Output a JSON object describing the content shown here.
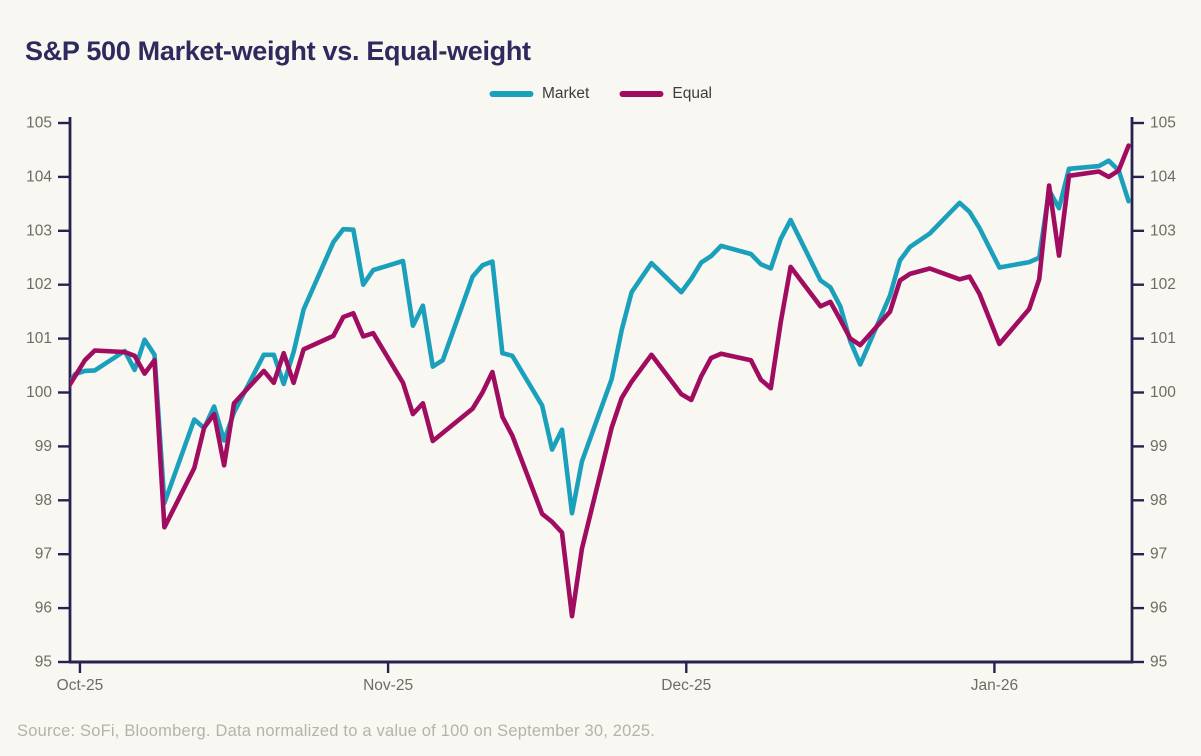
{
  "title": "S&P 500 Market-weight vs. Equal-weight",
  "source_note": "Source: SoFi, Bloomberg. Data normalized to a value of 100 on September 30, 2025.",
  "colors": {
    "background": "#F9F7F2",
    "title": "#2E2A5E",
    "axis": "#262250",
    "tick_label": "#6F6B64",
    "market": "#1BA0BC",
    "equal": "#A00D60",
    "legend_text": "#3C3C3C",
    "source_text": "#B6B2A9"
  },
  "legend": {
    "market_label": "Market",
    "equal_label": "Equal"
  },
  "chart_data": {
    "type": "line",
    "title": "S&P 500 Market-weight vs. Equal-weight",
    "xlabel": "",
    "ylabel": "",
    "x_unit": "calendar days since Sep 30, 2025 (trading days plotted)",
    "x_domain": [
      0,
      107.5
    ],
    "x_ticks": [
      {
        "d": 1,
        "label": "Oct-25"
      },
      {
        "d": 32,
        "label": "Nov-25"
      },
      {
        "d": 62,
        "label": "Dec-25"
      },
      {
        "d": 93,
        "label": "Jan-26"
      }
    ],
    "y_axis": {
      "min": 95,
      "max": 105,
      "tick_step": 1,
      "labels_on_both_sides": true
    },
    "grid": false,
    "legend_position": "top-center",
    "normalization": "100 = Sep 30, 2025 close",
    "series": [
      {
        "name": "Market",
        "color": "#1BA0BC",
        "points": [
          [
            0,
            100.0
          ],
          [
            1,
            100.34
          ],
          [
            2,
            100.4
          ],
          [
            3,
            100.41
          ],
          [
            6,
            100.77
          ],
          [
            7,
            100.42
          ],
          [
            8,
            100.98
          ],
          [
            9,
            100.7
          ],
          [
            10,
            97.95
          ],
          [
            13,
            99.5
          ],
          [
            14,
            99.34
          ],
          [
            15,
            99.74
          ],
          [
            16,
            99.11
          ],
          [
            17,
            99.63
          ],
          [
            20,
            100.7
          ],
          [
            21,
            100.7
          ],
          [
            22,
            100.16
          ],
          [
            23,
            100.75
          ],
          [
            24,
            101.54
          ],
          [
            27,
            102.79
          ],
          [
            28,
            103.03
          ],
          [
            29,
            103.02
          ],
          [
            30,
            102.0
          ],
          [
            31,
            102.27
          ],
          [
            34,
            102.44
          ],
          [
            35,
            101.24
          ],
          [
            36,
            101.61
          ],
          [
            37,
            100.48
          ],
          [
            38,
            100.6
          ],
          [
            41,
            102.15
          ],
          [
            42,
            102.36
          ],
          [
            43,
            102.43
          ],
          [
            44,
            100.73
          ],
          [
            45,
            100.68
          ],
          [
            48,
            99.76
          ],
          [
            49,
            98.94
          ],
          [
            50,
            99.31
          ],
          [
            51,
            97.76
          ],
          [
            52,
            98.72
          ],
          [
            55,
            100.25
          ],
          [
            56,
            101.16
          ],
          [
            57,
            101.86
          ],
          [
            59,
            102.4
          ],
          [
            62,
            101.86
          ],
          [
            63,
            102.11
          ],
          [
            64,
            102.41
          ],
          [
            65,
            102.53
          ],
          [
            66,
            102.72
          ],
          [
            69,
            102.57
          ],
          [
            70,
            102.38
          ],
          [
            71,
            102.3
          ],
          [
            72,
            102.85
          ],
          [
            73,
            103.2
          ],
          [
            76,
            102.08
          ],
          [
            77,
            101.95
          ],
          [
            78,
            101.6
          ],
          [
            79,
            100.95
          ],
          [
            80,
            100.52
          ],
          [
            83,
            101.8
          ],
          [
            84,
            102.45
          ],
          [
            85,
            102.7
          ],
          [
            87,
            102.95
          ],
          [
            90,
            103.52
          ],
          [
            91,
            103.35
          ],
          [
            92,
            103.05
          ],
          [
            94,
            102.32
          ],
          [
            97,
            102.42
          ],
          [
            98,
            102.5
          ],
          [
            99,
            103.75
          ],
          [
            100,
            103.42
          ],
          [
            101,
            104.15
          ],
          [
            104,
            104.2
          ],
          [
            105,
            104.3
          ],
          [
            106,
            104.12
          ],
          [
            107,
            103.55
          ]
        ]
      },
      {
        "name": "Equal",
        "color": "#A00D60",
        "points": [
          [
            0,
            100.0
          ],
          [
            1,
            100.3
          ],
          [
            2,
            100.6
          ],
          [
            3,
            100.78
          ],
          [
            6,
            100.75
          ],
          [
            7,
            100.68
          ],
          [
            8,
            100.35
          ],
          [
            9,
            100.6
          ],
          [
            10,
            97.5
          ],
          [
            13,
            98.6
          ],
          [
            14,
            99.35
          ],
          [
            15,
            99.6
          ],
          [
            16,
            98.65
          ],
          [
            17,
            99.8
          ],
          [
            20,
            100.4
          ],
          [
            21,
            100.18
          ],
          [
            22,
            100.73
          ],
          [
            23,
            100.18
          ],
          [
            24,
            100.8
          ],
          [
            27,
            101.05
          ],
          [
            28,
            101.4
          ],
          [
            29,
            101.47
          ],
          [
            30,
            101.04
          ],
          [
            31,
            101.1
          ],
          [
            34,
            100.18
          ],
          [
            35,
            99.6
          ],
          [
            36,
            99.8
          ],
          [
            37,
            99.1
          ],
          [
            38,
            99.25
          ],
          [
            41,
            99.7
          ],
          [
            42,
            100.0
          ],
          [
            43,
            100.38
          ],
          [
            44,
            99.55
          ],
          [
            45,
            99.2
          ],
          [
            48,
            97.75
          ],
          [
            49,
            97.6
          ],
          [
            50,
            97.4
          ],
          [
            51,
            95.85
          ],
          [
            52,
            97.1
          ],
          [
            55,
            99.35
          ],
          [
            56,
            99.9
          ],
          [
            57,
            100.2
          ],
          [
            59,
            100.7
          ],
          [
            62,
            99.97
          ],
          [
            63,
            99.86
          ],
          [
            64,
            100.3
          ],
          [
            65,
            100.64
          ],
          [
            66,
            100.72
          ],
          [
            69,
            100.6
          ],
          [
            70,
            100.24
          ],
          [
            71,
            100.08
          ],
          [
            72,
            101.3
          ],
          [
            73,
            102.33
          ],
          [
            76,
            101.6
          ],
          [
            77,
            101.68
          ],
          [
            78,
            101.35
          ],
          [
            79,
            101.0
          ],
          [
            80,
            100.88
          ],
          [
            83,
            101.5
          ],
          [
            84,
            102.08
          ],
          [
            85,
            102.2
          ],
          [
            87,
            102.3
          ],
          [
            90,
            102.1
          ],
          [
            91,
            102.15
          ],
          [
            92,
            101.83
          ],
          [
            94,
            100.9
          ],
          [
            97,
            101.55
          ],
          [
            98,
            102.1
          ],
          [
            99,
            103.84
          ],
          [
            100,
            102.54
          ],
          [
            101,
            104.02
          ],
          [
            104,
            104.1
          ],
          [
            105,
            104.0
          ],
          [
            106,
            104.12
          ],
          [
            107,
            104.58
          ]
        ]
      }
    ]
  }
}
